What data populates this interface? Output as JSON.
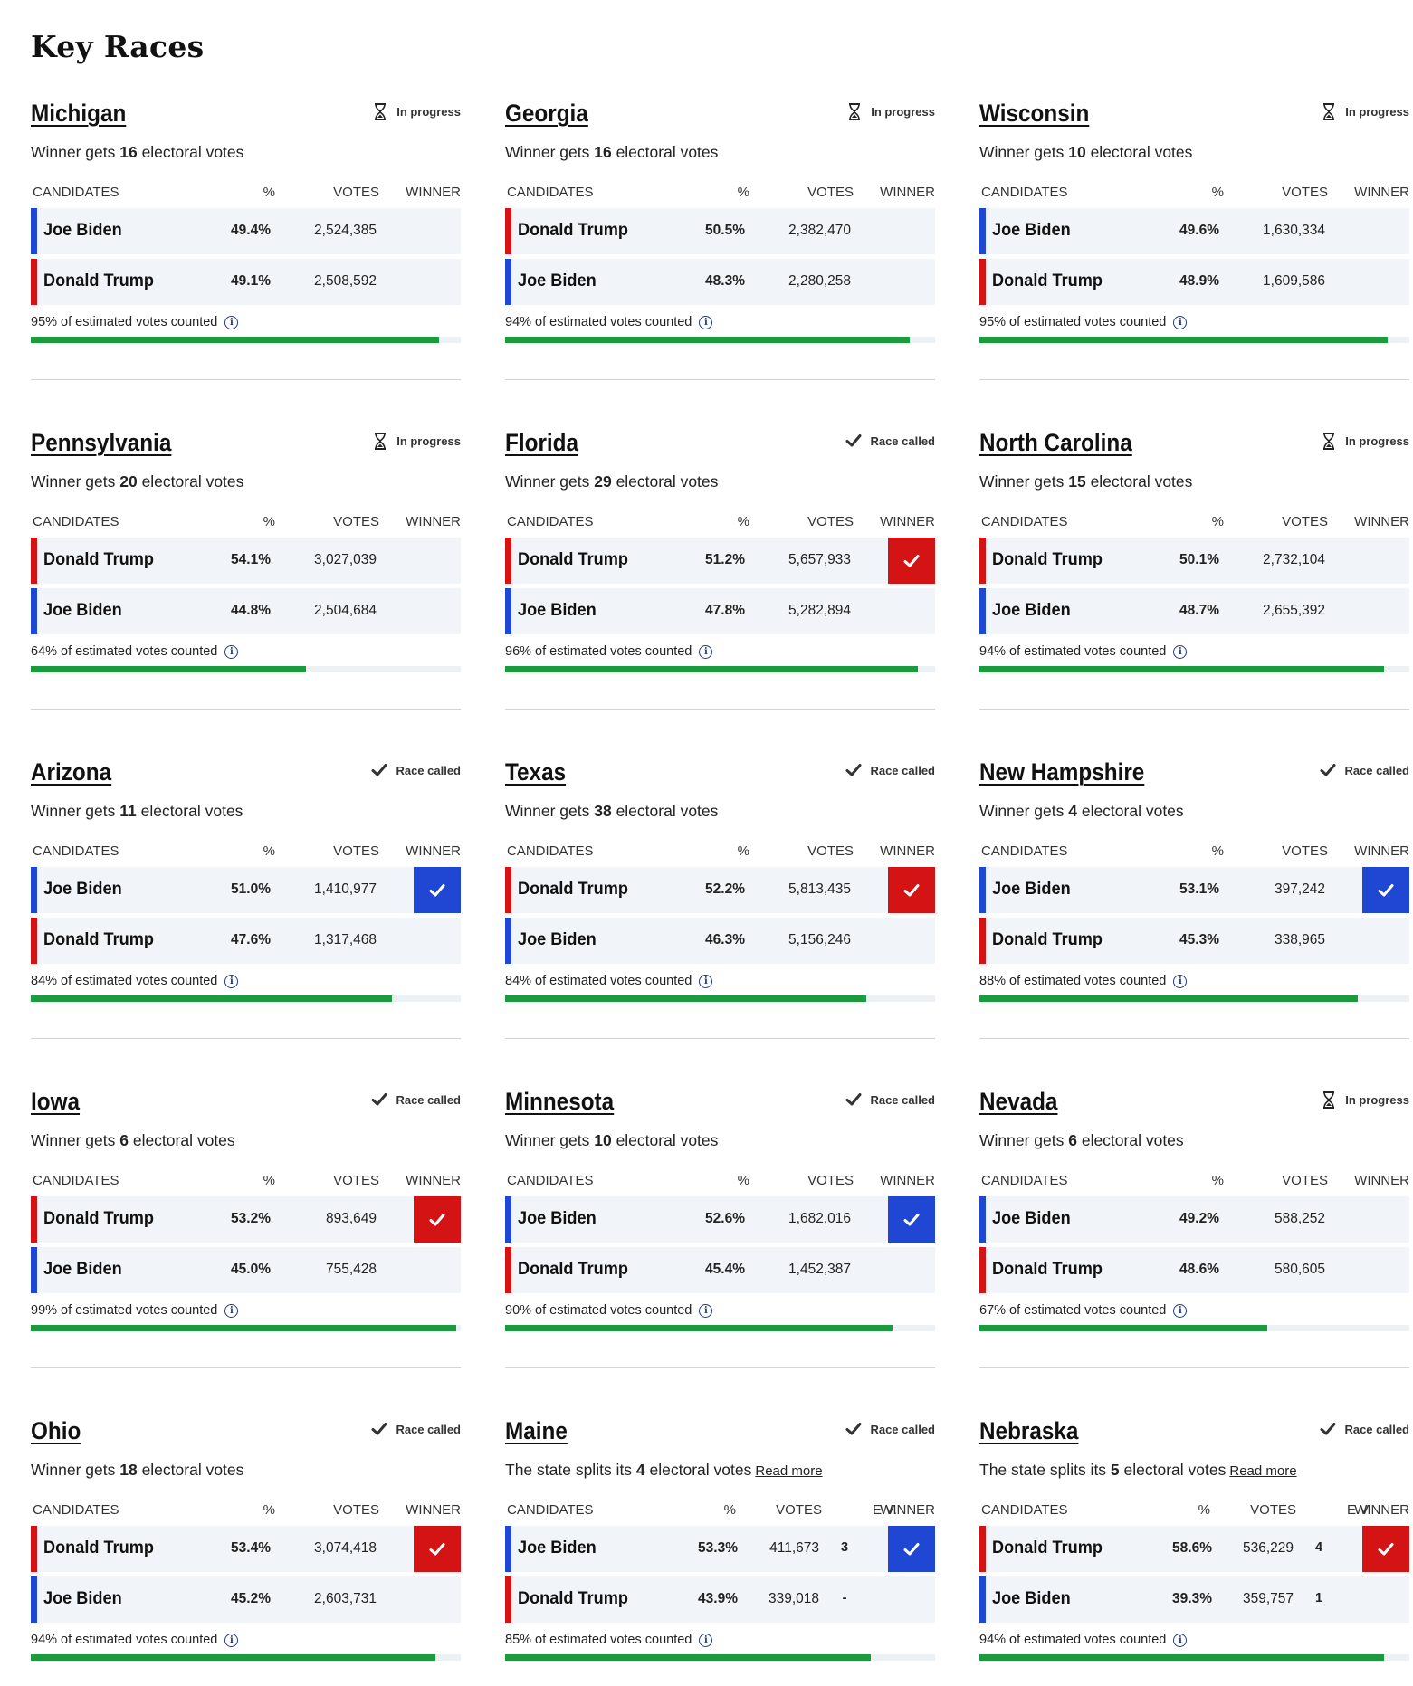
{
  "page": {
    "title": "Key Races"
  },
  "columns": {
    "candidates": "CANDIDATES",
    "pct": "%",
    "votes": "VOTES",
    "ev": "E.V.",
    "winner": "WINNER"
  },
  "labels": {
    "winner_gets_prefix": "Winner gets ",
    "electoral_votes_suffix": " electoral votes",
    "split_prefix": "The state splits its ",
    "read_more": "Read more",
    "counted_suffix": " of estimated votes counted"
  },
  "colors": {
    "democrat": "#1f47d4",
    "republican": "#d41414",
    "progress": "#1a9b3d",
    "row_bg": "#f1f5f9"
  },
  "races": [
    {
      "state": "Michigan",
      "status": "In progress",
      "status_icon": "hourglass-icon",
      "electoral_votes": "16",
      "split": false,
      "candidates": [
        {
          "name": "Joe Biden",
          "party": "dem",
          "pct": "49.4%",
          "votes": "2,524,385",
          "winner": false
        },
        {
          "name": "Donald Trump",
          "party": "rep",
          "pct": "49.1%",
          "votes": "2,508,592",
          "winner": false
        }
      ],
      "counted": "95%",
      "counted_value": 95
    },
    {
      "state": "Georgia",
      "status": "In progress",
      "status_icon": "hourglass-icon",
      "electoral_votes": "16",
      "split": false,
      "candidates": [
        {
          "name": "Donald Trump",
          "party": "rep",
          "pct": "50.5%",
          "votes": "2,382,470",
          "winner": false
        },
        {
          "name": "Joe Biden",
          "party": "dem",
          "pct": "48.3%",
          "votes": "2,280,258",
          "winner": false
        }
      ],
      "counted": "94%",
      "counted_value": 94
    },
    {
      "state": "Wisconsin",
      "status": "In progress",
      "status_icon": "hourglass-icon",
      "electoral_votes": "10",
      "split": false,
      "candidates": [
        {
          "name": "Joe Biden",
          "party": "dem",
          "pct": "49.6%",
          "votes": "1,630,334",
          "winner": false
        },
        {
          "name": "Donald Trump",
          "party": "rep",
          "pct": "48.9%",
          "votes": "1,609,586",
          "winner": false
        }
      ],
      "counted": "95%",
      "counted_value": 95
    },
    {
      "state": "Pennsylvania",
      "status": "In progress",
      "status_icon": "hourglass-icon",
      "electoral_votes": "20",
      "split": false,
      "candidates": [
        {
          "name": "Donald Trump",
          "party": "rep",
          "pct": "54.1%",
          "votes": "3,027,039",
          "winner": false
        },
        {
          "name": "Joe Biden",
          "party": "dem",
          "pct": "44.8%",
          "votes": "2,504,684",
          "winner": false
        }
      ],
      "counted": "64%",
      "counted_value": 64
    },
    {
      "state": "Florida",
      "status": "Race called",
      "status_icon": "checkmark-icon",
      "electoral_votes": "29",
      "split": false,
      "candidates": [
        {
          "name": "Donald Trump",
          "party": "rep",
          "pct": "51.2%",
          "votes": "5,657,933",
          "winner": true
        },
        {
          "name": "Joe Biden",
          "party": "dem",
          "pct": "47.8%",
          "votes": "5,282,894",
          "winner": false
        }
      ],
      "counted": "96%",
      "counted_value": 96
    },
    {
      "state": "North Carolina",
      "status": "In progress",
      "status_icon": "hourglass-icon",
      "electoral_votes": "15",
      "split": false,
      "candidates": [
        {
          "name": "Donald Trump",
          "party": "rep",
          "pct": "50.1%",
          "votes": "2,732,104",
          "winner": false
        },
        {
          "name": "Joe Biden",
          "party": "dem",
          "pct": "48.7%",
          "votes": "2,655,392",
          "winner": false
        }
      ],
      "counted": "94%",
      "counted_value": 94
    },
    {
      "state": "Arizona",
      "status": "Race called",
      "status_icon": "checkmark-icon",
      "electoral_votes": "11",
      "split": false,
      "candidates": [
        {
          "name": "Joe Biden",
          "party": "dem",
          "pct": "51.0%",
          "votes": "1,410,977",
          "winner": true
        },
        {
          "name": "Donald Trump",
          "party": "rep",
          "pct": "47.6%",
          "votes": "1,317,468",
          "winner": false
        }
      ],
      "counted": "84%",
      "counted_value": 84
    },
    {
      "state": "Texas",
      "status": "Race called",
      "status_icon": "checkmark-icon",
      "electoral_votes": "38",
      "split": false,
      "candidates": [
        {
          "name": "Donald Trump",
          "party": "rep",
          "pct": "52.2%",
          "votes": "5,813,435",
          "winner": true
        },
        {
          "name": "Joe Biden",
          "party": "dem",
          "pct": "46.3%",
          "votes": "5,156,246",
          "winner": false
        }
      ],
      "counted": "84%",
      "counted_value": 84
    },
    {
      "state": "New Hampshire",
      "status": "Race called",
      "status_icon": "checkmark-icon",
      "electoral_votes": "4",
      "split": false,
      "candidates": [
        {
          "name": "Joe Biden",
          "party": "dem",
          "pct": "53.1%",
          "votes": "397,242",
          "winner": true
        },
        {
          "name": "Donald Trump",
          "party": "rep",
          "pct": "45.3%",
          "votes": "338,965",
          "winner": false
        }
      ],
      "counted": "88%",
      "counted_value": 88
    },
    {
      "state": "Iowa",
      "status": "Race called",
      "status_icon": "checkmark-icon",
      "electoral_votes": "6",
      "split": false,
      "candidates": [
        {
          "name": "Donald Trump",
          "party": "rep",
          "pct": "53.2%",
          "votes": "893,649",
          "winner": true
        },
        {
          "name": "Joe Biden",
          "party": "dem",
          "pct": "45.0%",
          "votes": "755,428",
          "winner": false
        }
      ],
      "counted": "99%",
      "counted_value": 99
    },
    {
      "state": "Minnesota",
      "status": "Race called",
      "status_icon": "checkmark-icon",
      "electoral_votes": "10",
      "split": false,
      "candidates": [
        {
          "name": "Joe Biden",
          "party": "dem",
          "pct": "52.6%",
          "votes": "1,682,016",
          "winner": true
        },
        {
          "name": "Donald Trump",
          "party": "rep",
          "pct": "45.4%",
          "votes": "1,452,387",
          "winner": false
        }
      ],
      "counted": "90%",
      "counted_value": 90
    },
    {
      "state": "Nevada",
      "status": "In progress",
      "status_icon": "hourglass-icon",
      "electoral_votes": "6",
      "split": false,
      "candidates": [
        {
          "name": "Joe Biden",
          "party": "dem",
          "pct": "49.2%",
          "votes": "588,252",
          "winner": false
        },
        {
          "name": "Donald Trump",
          "party": "rep",
          "pct": "48.6%",
          "votes": "580,605",
          "winner": false
        }
      ],
      "counted": "67%",
      "counted_value": 67
    },
    {
      "state": "Ohio",
      "status": "Race called",
      "status_icon": "checkmark-icon",
      "electoral_votes": "18",
      "split": false,
      "candidates": [
        {
          "name": "Donald Trump",
          "party": "rep",
          "pct": "53.4%",
          "votes": "3,074,418",
          "winner": true
        },
        {
          "name": "Joe Biden",
          "party": "dem",
          "pct": "45.2%",
          "votes": "2,603,731",
          "winner": false
        }
      ],
      "counted": "94%",
      "counted_value": 94
    },
    {
      "state": "Maine",
      "status": "Race called",
      "status_icon": "checkmark-icon",
      "electoral_votes": "4",
      "split": true,
      "candidates": [
        {
          "name": "Joe Biden",
          "party": "dem",
          "pct": "53.3%",
          "votes": "411,673",
          "ev": "3",
          "winner": true
        },
        {
          "name": "Donald Trump",
          "party": "rep",
          "pct": "43.9%",
          "votes": "339,018",
          "ev": "-",
          "winner": false
        }
      ],
      "counted": "85%",
      "counted_value": 85
    },
    {
      "state": "Nebraska",
      "status": "Race called",
      "status_icon": "checkmark-icon",
      "electoral_votes": "5",
      "split": true,
      "candidates": [
        {
          "name": "Donald Trump",
          "party": "rep",
          "pct": "58.6%",
          "votes": "536,229",
          "ev": "4",
          "winner": true
        },
        {
          "name": "Joe Biden",
          "party": "dem",
          "pct": "39.3%",
          "votes": "359,757",
          "ev": "1",
          "winner": false
        }
      ],
      "counted": "94%",
      "counted_value": 94
    }
  ]
}
